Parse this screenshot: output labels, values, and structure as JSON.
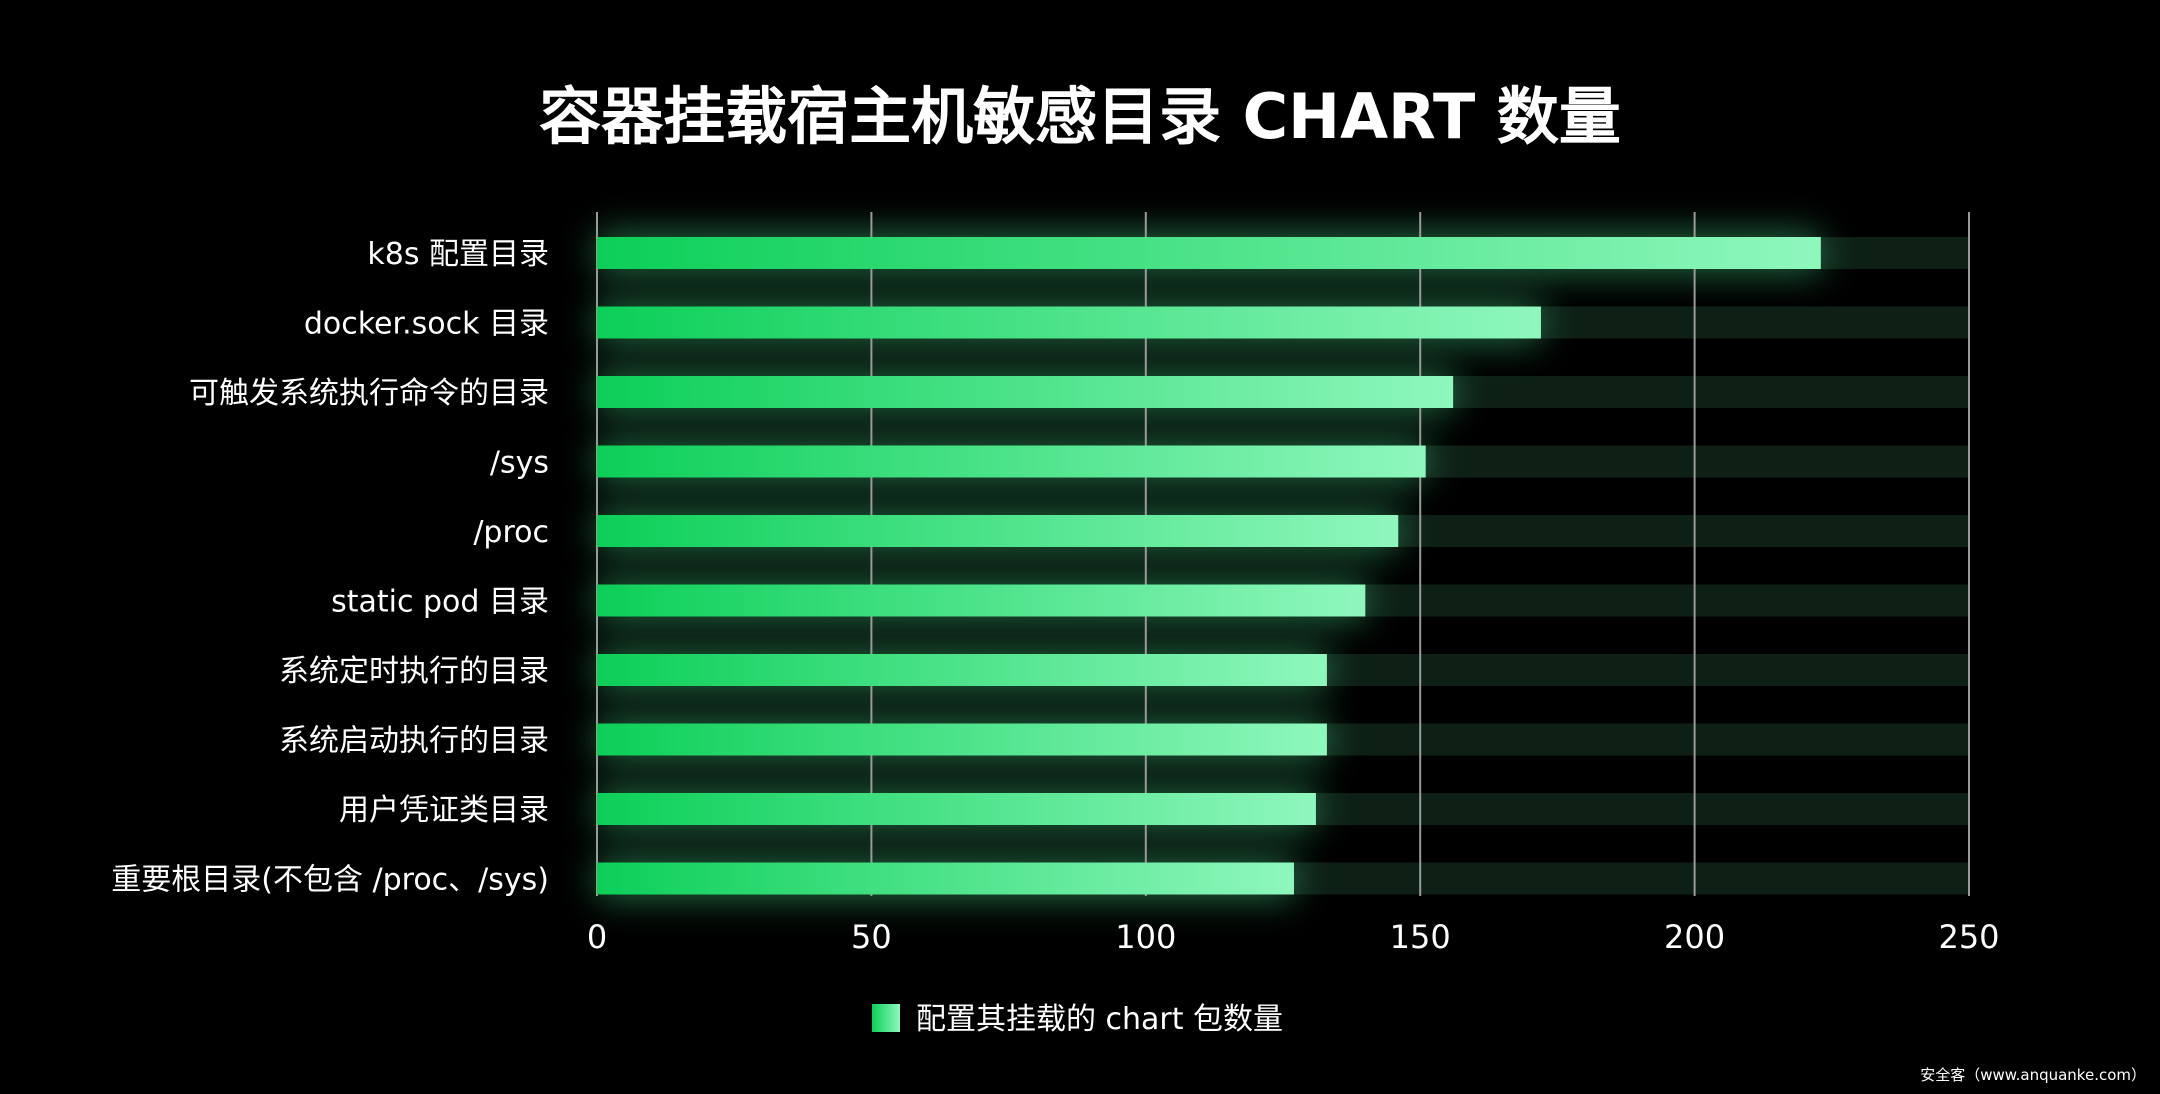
{
  "chart_data": {
    "type": "bar",
    "orientation": "horizontal",
    "title": "容器挂载宿主机敏感目录 CHART 数量",
    "categories": [
      "k8s 配置目录",
      "docker.sock 目录",
      "可触发系统执行命令的目录",
      "/sys",
      "/proc",
      "static pod 目录",
      "系统定时执行的目录",
      "系统启动执行的目录",
      "用户凭证类目录",
      "重要根目录(不包含 /proc、/sys)"
    ],
    "series": [
      {
        "name": "配置其挂载的 chart 包数量",
        "values": [
          223,
          172,
          156,
          151,
          146,
          140,
          133,
          133,
          131,
          127
        ]
      }
    ],
    "xlim": [
      0,
      250
    ],
    "xticks": [
      0,
      50,
      100,
      150,
      200,
      250
    ],
    "grid": true,
    "legend": "bottom-center",
    "colors": {
      "background": "#000000",
      "bar_start": "#0ccf58",
      "bar_end": "#8ff7bd",
      "track": "#0e1f16",
      "grid": "#9a9a9a",
      "text": "#ffffff"
    }
  },
  "watermark": "安全客（www.anquanke.com）"
}
